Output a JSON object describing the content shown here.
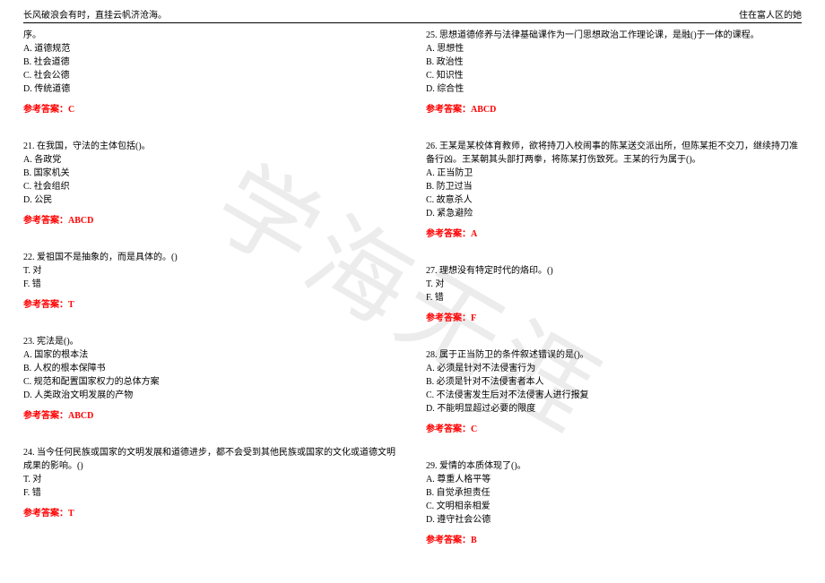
{
  "header": {
    "left": "长风破浪会有时，直挂云帆济沧海。",
    "right": "住在富人区的她"
  },
  "watermark": "学海无涯",
  "left_col": {
    "q20": {
      "stem_tail": "序。",
      "opts": [
        "A. 道德规范",
        "B. 社会道德",
        "C. 社会公德",
        "D. 传统道德"
      ],
      "answer": "参考答案：C"
    },
    "q21": {
      "stem": "21. 在我国，守法的主体包括()。",
      "opts": [
        "A. 各政党",
        "B. 国家机关",
        "C. 社会组织",
        "D. 公民"
      ],
      "answer": "参考答案：ABCD"
    },
    "q22": {
      "stem": "22. 爱祖国不是抽象的，而是具体的。()",
      "opts": [
        "T. 对",
        "F. 错"
      ],
      "answer": "参考答案：T"
    },
    "q23": {
      "stem": "23. 宪法是()。",
      "opts": [
        "A. 国家的根本法",
        "B. 人权的根本保障书",
        "C. 规范和配置国家权力的总体方案",
        "D. 人类政治文明发展的产物"
      ],
      "answer": "参考答案：ABCD"
    },
    "q24": {
      "stem": "24. 当今任何民族或国家的文明发展和道德进步，都不会受到其他民族或国家的文化或道德文明成果的影响。()",
      "opts": [
        "T. 对",
        "F. 错"
      ],
      "answer": "参考答案：T"
    }
  },
  "right_col": {
    "q25": {
      "stem": "25. 思想道德修养与法律基础课作为一门思想政治工作理论课，是融()于一体的课程。",
      "opts": [
        "A. 思想性",
        "B. 政治性",
        "C. 知识性",
        "D. 综合性"
      ],
      "answer": "参考答案：ABCD"
    },
    "q26": {
      "stem": "26. 王某是某校体育教师，欲将持刀入校闹事的陈某送交派出所，但陈某拒不交刀，继续持刀准备行凶。王某朝其头部打两拳，将陈某打伤致死。王某的行为属于()。",
      "opts": [
        "A. 正当防卫",
        "B. 防卫过当",
        "C. 故意杀人",
        "D. 紧急避险"
      ],
      "answer": "参考答案：A"
    },
    "q27": {
      "stem": "27. 理想没有特定时代的烙印。()",
      "opts": [
        "T. 对",
        "F. 错"
      ],
      "answer": "参考答案：F"
    },
    "q28": {
      "stem": "28. 属于正当防卫的条件叙述错误的是()。",
      "opts": [
        "A. 必须是针对不法侵害行为",
        "B. 必须是针对不法侵害者本人",
        "C. 不法侵害发生后对不法侵害人进行报复",
        "D. 不能明显超过必要的限度"
      ],
      "answer": "参考答案：C"
    },
    "q29": {
      "stem": "29. 爱情的本质体现了()。",
      "opts": [
        "A. 尊重人格平等",
        "B. 自觉承担责任",
        "C. 文明相亲相爱",
        "D. 遵守社会公德"
      ],
      "answer": "参考答案：B"
    }
  }
}
